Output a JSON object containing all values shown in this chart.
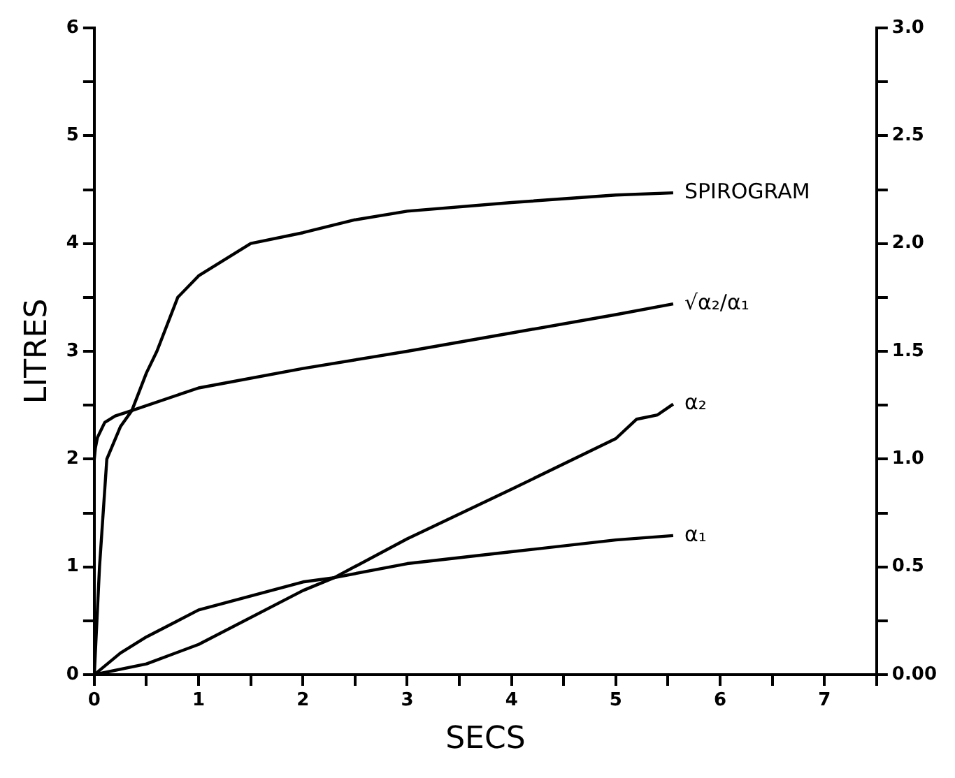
{
  "chart_data": {
    "type": "line",
    "xlabel": "SECS",
    "ylabel": "LITRES",
    "xlim": [
      0,
      7.5
    ],
    "xticks": [
      0,
      {
        "value": 0.5,
        "label": null
      },
      1,
      {
        "value": 1.5,
        "label": null
      },
      2,
      {
        "value": 2.5,
        "label": null
      },
      3,
      {
        "value": 3.5,
        "label": null
      },
      4,
      {
        "value": 4.5,
        "label": null
      },
      5,
      {
        "value": 5.5,
        "label": null
      },
      6,
      {
        "value": 6.5,
        "label": null
      },
      7,
      {
        "value": 7.5,
        "label": null
      }
    ],
    "ylim": [
      0,
      6
    ],
    "yticks": [
      0,
      {
        "value": 0.5,
        "label": null
      },
      1,
      {
        "value": 1.5,
        "label": null
      },
      2,
      {
        "value": 2.5,
        "label": null
      },
      3,
      {
        "value": 3.5,
        "label": null
      },
      4,
      {
        "value": 4.5,
        "label": null
      },
      5,
      {
        "value": 5.5,
        "label": null
      },
      6
    ],
    "y2lim": [
      0,
      3
    ],
    "y2ticks": [
      {
        "value": 0,
        "label": "0.00"
      },
      {
        "value": 0.25,
        "label": null
      },
      0.5,
      {
        "value": 0.75,
        "label": null
      },
      {
        "value": 1,
        "label": "1.0"
      },
      {
        "value": 1.25,
        "label": null
      },
      1.5,
      {
        "value": 1.75,
        "label": null
      },
      {
        "value": 2,
        "label": "2.0"
      },
      {
        "value": 2.25,
        "label": null
      },
      2.5,
      {
        "value": 2.75,
        "label": null
      },
      {
        "value": 3,
        "label": "3.0"
      }
    ],
    "grid": false,
    "legend": false,
    "marker": "none",
    "line_style": "solid",
    "series": [
      {
        "name": "SPIROGRAM",
        "color": "#000000",
        "x": [
          0,
          0.05,
          0.12,
          0.25,
          0.36,
          0.5,
          0.6,
          0.8,
          1.0,
          1.5,
          2,
          2.5,
          3,
          4,
          5,
          5.55
        ],
        "values": [
          0,
          1.0,
          2.0,
          2.3,
          2.45,
          2.8,
          3.0,
          3.5,
          3.7,
          4.0,
          4.1,
          4.22,
          4.3,
          4.38,
          4.45,
          4.47
        ]
      },
      {
        "name": "√α₂/α₁",
        "color": "#000000",
        "axis": "y2",
        "x": [
          0,
          0.01,
          0.03,
          0.1,
          0.2,
          0.36,
          1,
          2,
          3,
          4,
          5,
          5.55
        ],
        "values": [
          1.0,
          1.05,
          1.1,
          1.17,
          1.2,
          1.225,
          1.33,
          1.42,
          1.5,
          1.585,
          1.67,
          1.72
        ]
      },
      {
        "name": "α₂",
        "color": "#000000",
        "x": [
          0,
          0.5,
          1,
          2,
          2.3,
          3,
          4,
          5,
          5.2,
          5.4,
          5.55
        ],
        "values": [
          0,
          0.1,
          0.28,
          0.78,
          0.9,
          1.26,
          1.72,
          2.19,
          2.37,
          2.41,
          2.51
        ]
      },
      {
        "name": "α₁",
        "color": "#000000",
        "x": [
          0,
          0.25,
          0.5,
          1,
          2,
          2.3,
          3,
          4,
          5,
          5.55
        ],
        "values": [
          0,
          0.2,
          0.35,
          0.6,
          0.86,
          0.9,
          1.03,
          1.14,
          1.25,
          1.29
        ]
      }
    ]
  }
}
